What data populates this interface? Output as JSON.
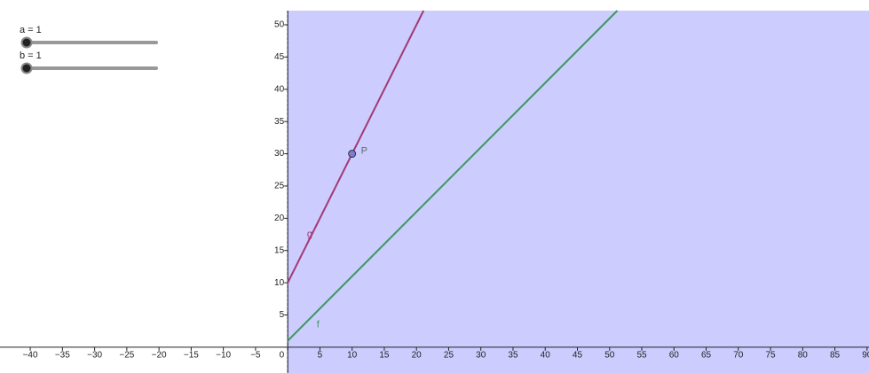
{
  "sliders": [
    {
      "label": "a = 1"
    },
    {
      "label": "b = 1"
    }
  ],
  "chart_data": {
    "type": "line",
    "xlim": [
      -44.7,
      90.3
    ],
    "ylim": [
      -4,
      52.2
    ],
    "xticks": [
      {
        "value": -40,
        "label": "−40"
      },
      {
        "value": -35,
        "label": "−35"
      },
      {
        "value": -30,
        "label": "−30"
      },
      {
        "value": -25,
        "label": "−25"
      },
      {
        "value": -20,
        "label": "−20"
      },
      {
        "value": -15,
        "label": "−15"
      },
      {
        "value": -10,
        "label": "−10"
      },
      {
        "value": -5,
        "label": "−5"
      },
      0,
      5,
      10,
      15,
      20,
      25,
      30,
      35,
      40,
      45,
      50,
      55,
      60,
      65,
      70,
      75,
      80,
      85,
      90
    ],
    "yticks": [
      5,
      10,
      15,
      20,
      25,
      30,
      35,
      40,
      45,
      50
    ],
    "region_color": "#ccccff",
    "series": [
      {
        "name": "f",
        "color": "#3a9a5a",
        "x": [
          0,
          51.2
        ],
        "values": [
          1,
          52.2
        ],
        "label_at": [
          4.5,
          3.5
        ]
      },
      {
        "name": "g",
        "color": "#a23a72",
        "x": [
          0,
          21.1
        ],
        "values": [
          10,
          52.2
        ],
        "label_at": [
          3,
          17.5
        ]
      }
    ],
    "points": [
      {
        "name": "P",
        "x": 10,
        "y": 30,
        "color": "#7b7bd8"
      }
    ]
  }
}
